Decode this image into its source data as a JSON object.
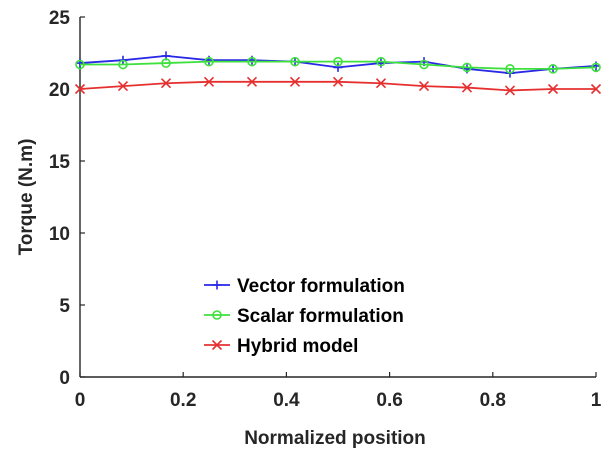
{
  "chart_data": {
    "type": "line",
    "title": "",
    "xlabel": "Normalized position",
    "ylabel": "Torque (N.m)",
    "xlim": [
      0,
      1
    ],
    "ylim": [
      0,
      25
    ],
    "xticks": [
      "0",
      "0.2",
      "0.4",
      "0.6",
      "0.8",
      "1"
    ],
    "yticks": [
      "0",
      "5",
      "10",
      "15",
      "20",
      "25"
    ],
    "x": [
      0,
      0.0833,
      0.1667,
      0.25,
      0.3333,
      0.4167,
      0.5,
      0.5833,
      0.6667,
      0.75,
      0.8333,
      0.9167,
      1
    ],
    "series": [
      {
        "name": "Vector formulation",
        "color": "#2828e6",
        "marker": "plus",
        "values": [
          21.8,
          22.0,
          22.3,
          22.0,
          22.0,
          21.9,
          21.5,
          21.8,
          21.9,
          21.4,
          21.1,
          21.4,
          21.6
        ]
      },
      {
        "name": "Scalar formulation",
        "color": "#3ee03e",
        "marker": "circle",
        "values": [
          21.7,
          21.7,
          21.8,
          21.9,
          21.9,
          21.9,
          21.9,
          21.9,
          21.7,
          21.5,
          21.4,
          21.4,
          21.5
        ]
      },
      {
        "name": "Hybrid model",
        "color": "#e63030",
        "marker": "x",
        "values": [
          20.0,
          20.2,
          20.4,
          20.5,
          20.5,
          20.5,
          20.5,
          20.4,
          20.2,
          20.1,
          19.9,
          20.0,
          20.0
        ]
      }
    ],
    "legend": {
      "position": "bottom-left"
    },
    "grid": false
  }
}
